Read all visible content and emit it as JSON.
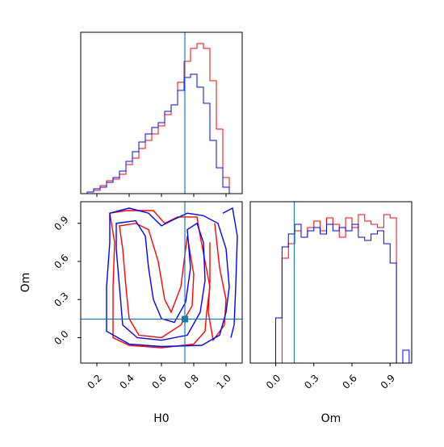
{
  "chart_data": {
    "type": "corner",
    "parameters": [
      "H0",
      "Om"
    ],
    "truth": {
      "H0": 0.745,
      "Om": 0.146
    },
    "colors": {
      "red": "#ff0000",
      "blue": "#0000ff",
      "truth": "#1f77b4"
    },
    "axes": {
      "H0": {
        "xlim": [
          0.1,
          1.1
        ],
        "ticks": [
          0.2,
          0.4,
          0.6,
          0.8,
          1.0
        ],
        "tick_labels": [
          "0.2",
          "0.4",
          "0.6",
          "0.8",
          "1.0"
        ]
      },
      "Om": {
        "lim": [
          -0.2,
          1.07
        ],
        "ticks": [
          0.0,
          0.3,
          0.6,
          0.9
        ],
        "tick_labels": [
          "0.0",
          "0.3",
          "0.6",
          "0.9"
        ]
      }
    },
    "xlabel_H0": "H0",
    "xlabel_Om": "Om",
    "ylabel_Om": "Om",
    "hist_H0": {
      "edges": [
        0.1,
        0.14,
        0.18,
        0.22,
        0.26,
        0.3,
        0.34,
        0.38,
        0.42,
        0.46,
        0.5,
        0.54,
        0.58,
        0.62,
        0.66,
        0.7,
        0.74,
        0.78,
        0.82,
        0.86,
        0.9,
        0.94,
        0.98,
        1.02,
        1.06,
        1.1
      ],
      "red": [
        0.0,
        0.01,
        0.02,
        0.05,
        0.08,
        0.09,
        0.12,
        0.18,
        0.22,
        0.28,
        0.33,
        0.37,
        0.42,
        0.49,
        0.55,
        0.69,
        0.82,
        0.9,
        0.93,
        0.9,
        0.7,
        0.4,
        0.1,
        0.0,
        0.0
      ],
      "blue": [
        0.0,
        0.01,
        0.03,
        0.04,
        0.07,
        0.1,
        0.14,
        0.2,
        0.26,
        0.32,
        0.37,
        0.41,
        0.44,
        0.51,
        0.55,
        0.64,
        0.72,
        0.74,
        0.66,
        0.56,
        0.33,
        0.16,
        0.04,
        0.0,
        0.0
      ]
    },
    "hist_Om": {
      "edges": [
        -0.2,
        -0.15,
        -0.1,
        -0.05,
        0.0,
        0.05,
        0.1,
        0.15,
        0.2,
        0.25,
        0.3,
        0.35,
        0.4,
        0.45,
        0.5,
        0.55,
        0.6,
        0.65,
        0.7,
        0.75,
        0.8,
        0.85,
        0.9,
        0.95,
        1.0,
        1.05
      ],
      "red": [
        0.0,
        0.0,
        0.0,
        0.0,
        0.0,
        0.65,
        0.74,
        0.82,
        0.78,
        0.84,
        0.88,
        0.82,
        0.9,
        0.86,
        0.78,
        0.9,
        0.84,
        0.92,
        0.88,
        0.86,
        0.84,
        0.92,
        0.9,
        0.0,
        0.0
      ],
      "blue": [
        0.0,
        0.0,
        0.0,
        0.0,
        0.28,
        0.72,
        0.8,
        0.86,
        0.78,
        0.82,
        0.84,
        0.8,
        0.86,
        0.82,
        0.84,
        0.82,
        0.86,
        0.78,
        0.76,
        0.8,
        0.82,
        0.74,
        0.62,
        0.0,
        0.08
      ]
    },
    "contours_2d": {
      "red": [
        [
          [
            0.3,
            0.0
          ],
          [
            0.3,
            0.4
          ],
          [
            0.31,
            0.75
          ],
          [
            0.28,
            0.98
          ],
          [
            0.38,
            1.0
          ],
          [
            0.55,
            1.0
          ],
          [
            0.62,
            0.9
          ],
          [
            0.7,
            0.95
          ],
          [
            0.82,
            0.95
          ],
          [
            0.84,
            0.8
          ],
          [
            0.87,
            0.6
          ],
          [
            0.9,
            0.4
          ],
          [
            0.88,
            0.2
          ],
          [
            0.87,
            0.05
          ],
          [
            0.8,
            -0.05
          ],
          [
            0.6,
            -0.08
          ],
          [
            0.4,
            -0.06
          ]
        ],
        [
          [
            0.4,
            0.15
          ],
          [
            0.38,
            0.4
          ],
          [
            0.36,
            0.7
          ],
          [
            0.34,
            0.88
          ],
          [
            0.44,
            0.9
          ],
          [
            0.52,
            0.85
          ],
          [
            0.58,
            0.6
          ],
          [
            0.62,
            0.3
          ],
          [
            0.66,
            0.2
          ],
          [
            0.72,
            0.4
          ],
          [
            0.76,
            0.8
          ],
          [
            0.8,
            0.5
          ],
          [
            0.79,
            0.25
          ],
          [
            0.72,
            0.1
          ],
          [
            0.6,
            0.0
          ],
          [
            0.46,
            0.02
          ]
        ],
        [
          [
            0.93,
            0.9
          ],
          [
            0.96,
            0.55
          ],
          [
            1.0,
            0.3
          ],
          [
            0.99,
            0.1
          ],
          [
            0.92,
            -0.02
          ],
          [
            0.89,
            0.2
          ],
          [
            0.9,
            0.45
          ],
          [
            0.9,
            0.75
          ]
        ]
      ],
      "blue": [
        [
          [
            0.26,
            0.05
          ],
          [
            0.26,
            0.4
          ],
          [
            0.28,
            0.75
          ],
          [
            0.28,
            0.98
          ],
          [
            0.4,
            1.02
          ],
          [
            0.52,
            0.98
          ],
          [
            0.6,
            0.88
          ],
          [
            0.66,
            0.92
          ],
          [
            0.76,
            0.98
          ],
          [
            0.86,
            0.96
          ],
          [
            0.95,
            0.9
          ],
          [
            1.0,
            0.7
          ],
          [
            1.02,
            0.4
          ],
          [
            1.0,
            0.2
          ],
          [
            0.96,
            0.02
          ],
          [
            0.85,
            -0.06
          ],
          [
            0.6,
            -0.07
          ],
          [
            0.4,
            -0.05
          ]
        ],
        [
          [
            0.36,
            0.1
          ],
          [
            0.34,
            0.4
          ],
          [
            0.32,
            0.7
          ],
          [
            0.32,
            0.9
          ],
          [
            0.44,
            0.92
          ],
          [
            0.5,
            0.8
          ],
          [
            0.52,
            0.55
          ],
          [
            0.55,
            0.3
          ],
          [
            0.6,
            0.15
          ],
          [
            0.68,
            0.12
          ],
          [
            0.75,
            0.28
          ],
          [
            0.78,
            0.55
          ],
          [
            0.76,
            0.85
          ],
          [
            0.82,
            0.9
          ],
          [
            0.86,
            0.75
          ],
          [
            0.87,
            0.45
          ],
          [
            0.84,
            0.2
          ],
          [
            0.76,
            0.02
          ],
          [
            0.6,
            -0.02
          ],
          [
            0.45,
            0.0
          ]
        ],
        [
          [
            0.98,
            0.98
          ],
          [
            1.04,
            1.02
          ],
          [
            1.07,
            0.8
          ],
          [
            1.06,
            0.4
          ],
          [
            1.05,
            0.1
          ],
          [
            1.03,
            0.0
          ]
        ]
      ]
    }
  }
}
